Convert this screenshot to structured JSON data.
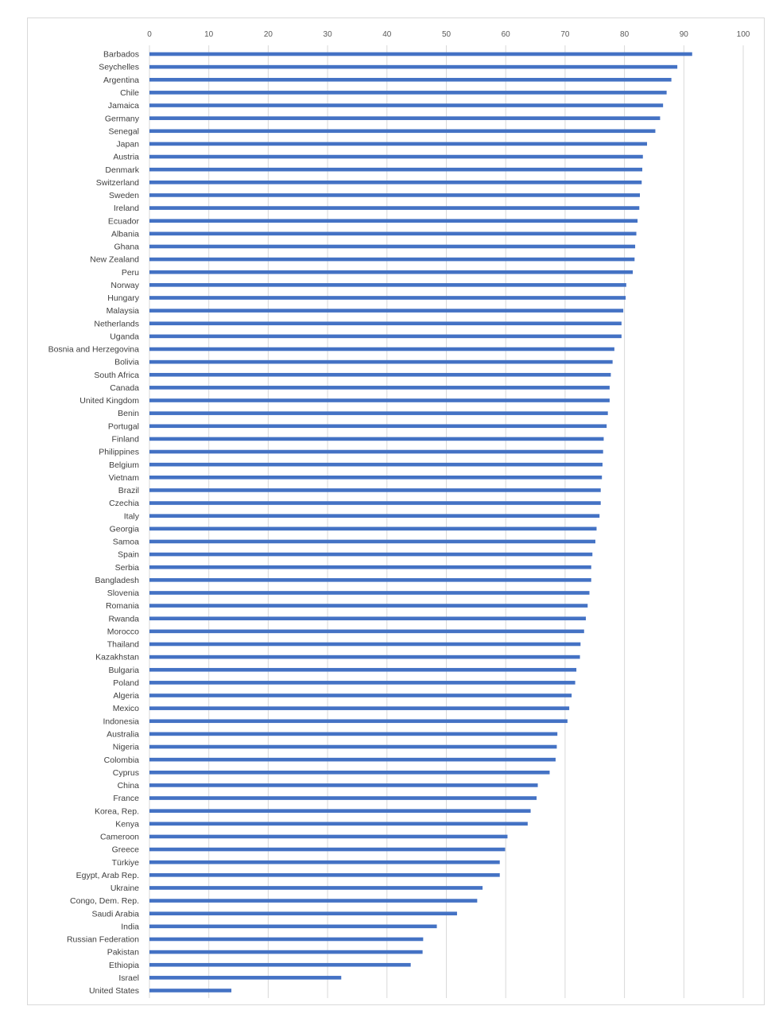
{
  "chart_data": {
    "type": "bar",
    "orientation": "horizontal",
    "title": "",
    "xlabel": "",
    "ylabel": "",
    "xlim": [
      0,
      100
    ],
    "x_ticks": [
      "0",
      "10",
      "20",
      "30",
      "40",
      "50",
      "60",
      "70",
      "80",
      "90",
      "100"
    ],
    "grid": true,
    "bar_color": "#4472C4",
    "grid_color": "#d9d9d9",
    "categories": [
      "Barbados",
      "Seychelles",
      "Argentina",
      "Chile",
      "Jamaica",
      "Germany",
      "Senegal",
      "Japan",
      "Austria",
      "Denmark",
      "Switzerland",
      "Sweden",
      "Ireland",
      "Ecuador",
      "Albania",
      "Ghana",
      "New Zealand",
      "Peru",
      "Norway",
      "Hungary",
      "Malaysia",
      "Netherlands",
      "Uganda",
      "Bosnia and Herzegovina",
      "Bolivia",
      "South Africa",
      "Canada",
      "United Kingdom",
      "Benin",
      "Portugal",
      "Finland",
      "Philippines",
      "Belgium",
      "Vietnam",
      "Brazil",
      "Czechia",
      "Italy",
      "Georgia",
      "Samoa",
      "Spain",
      "Serbia",
      "Bangladesh",
      "Slovenia",
      "Romania",
      "Rwanda",
      "Morocco",
      "Thailand",
      "Kazakhstan",
      "Bulgaria",
      "Poland",
      "Algeria",
      "Mexico",
      "Indonesia",
      "Australia",
      "Nigeria",
      "Colombia",
      "Cyprus",
      "China",
      "France",
      "Korea, Rep.",
      "Kenya",
      "Cameroon",
      "Greece",
      "Türkiye",
      "Egypt, Arab Rep.",
      "Ukraine",
      "Congo, Dem. Rep.",
      "Saudi Arabia",
      "India",
      "Russian Federation",
      "Pakistan",
      "Ethiopia",
      "Israel",
      "United States"
    ],
    "values": [
      91.4,
      88.9,
      87.9,
      87.1,
      86.5,
      86.0,
      85.2,
      83.8,
      83.1,
      83.0,
      82.9,
      82.6,
      82.5,
      82.2,
      82.0,
      81.8,
      81.7,
      81.4,
      80.3,
      80.2,
      79.8,
      79.5,
      79.5,
      78.3,
      78.0,
      77.7,
      77.5,
      77.5,
      77.2,
      77.0,
      76.5,
      76.4,
      76.3,
      76.2,
      76.0,
      76.0,
      75.8,
      75.3,
      75.1,
      74.6,
      74.4,
      74.4,
      74.1,
      73.8,
      73.5,
      73.2,
      72.6,
      72.5,
      71.9,
      71.7,
      71.1,
      70.7,
      70.4,
      68.7,
      68.6,
      68.4,
      67.4,
      65.4,
      65.2,
      64.2,
      63.7,
      60.3,
      59.9,
      59.0,
      59.0,
      56.1,
      55.2,
      51.8,
      48.4,
      46.1,
      46.0,
      44.0,
      32.3,
      13.8
    ]
  }
}
